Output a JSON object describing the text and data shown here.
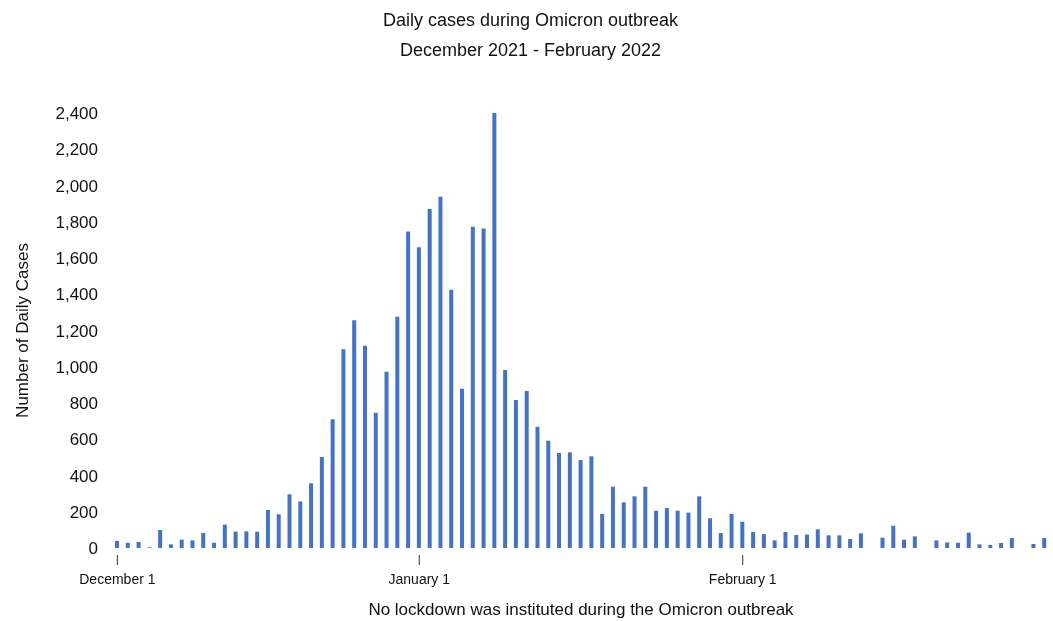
{
  "chart_data": {
    "type": "bar",
    "title": "Daily cases during Omicron outbreak",
    "subtitle": "December 2021 - February 2022",
    "xlabel": "No lockdown was instituted during the Omicron outbreak",
    "ylabel": "Number of Daily Cases",
    "categories": [
      "December 1",
      null,
      null,
      null,
      null,
      null,
      null,
      null,
      null,
      null,
      null,
      null,
      null,
      null,
      null,
      null,
      null,
      null,
      null,
      null,
      null,
      null,
      null,
      null,
      null,
      null,
      null,
      null,
      "January 1",
      null,
      null,
      null,
      null,
      null,
      null,
      null,
      null,
      null,
      null,
      null,
      null,
      null,
      null,
      null,
      null,
      null,
      null,
      null,
      null,
      null,
      null,
      null,
      null,
      null,
      null,
      null,
      null,
      null,
      "February 1",
      null,
      null,
      null,
      null,
      null,
      null,
      null,
      null,
      null,
      null,
      null,
      null,
      null,
      null,
      null,
      null,
      null,
      null,
      null,
      null,
      null,
      null,
      null,
      null,
      null,
      null,
      null,
      null
    ],
    "values": [
      39,
      29,
      33,
      4,
      99,
      20,
      46,
      42,
      83,
      29,
      129,
      90,
      92,
      90,
      210,
      186,
      296,
      257,
      357,
      502,
      710,
      1096,
      1256,
      1116,
      746,
      972,
      1276,
      1746,
      1660,
      1871,
      1938,
      1425,
      879,
      1772,
      1763,
      2400,
      982,
      816,
      866,
      669,
      592,
      524,
      528,
      485,
      506,
      188,
      338,
      252,
      285,
      338,
      206,
      221,
      206,
      195,
      285,
      164,
      83,
      188,
      145,
      88,
      77,
      42,
      88,
      72,
      74,
      103,
      70,
      70,
      50,
      81,
      null,
      57,
      123,
      46,
      64,
      null,
      42,
      31,
      29,
      85,
      20,
      17,
      28,
      55,
      null,
      22,
      55
    ],
    "color": "#4472c4",
    "ylim": [
      0,
      2400
    ],
    "yticks": [
      0,
      {
        "value": 200,
        "label": "200"
      },
      {
        "value": 400,
        "label": "400"
      },
      {
        "value": 600,
        "label": "600"
      },
      {
        "value": 800,
        "label": "800"
      },
      {
        "value": 1000,
        "label": "1,000"
      },
      {
        "value": 1200,
        "label": "1,200"
      },
      {
        "value": 1400,
        "label": "1,400"
      },
      {
        "value": 1600,
        "label": "1,600"
      },
      {
        "value": 1800,
        "label": "1,800"
      },
      {
        "value": 2000,
        "label": "2,000"
      },
      {
        "value": 2200,
        "label": "2,200"
      },
      {
        "value": 2400,
        "label": "2,400"
      }
    ]
  }
}
